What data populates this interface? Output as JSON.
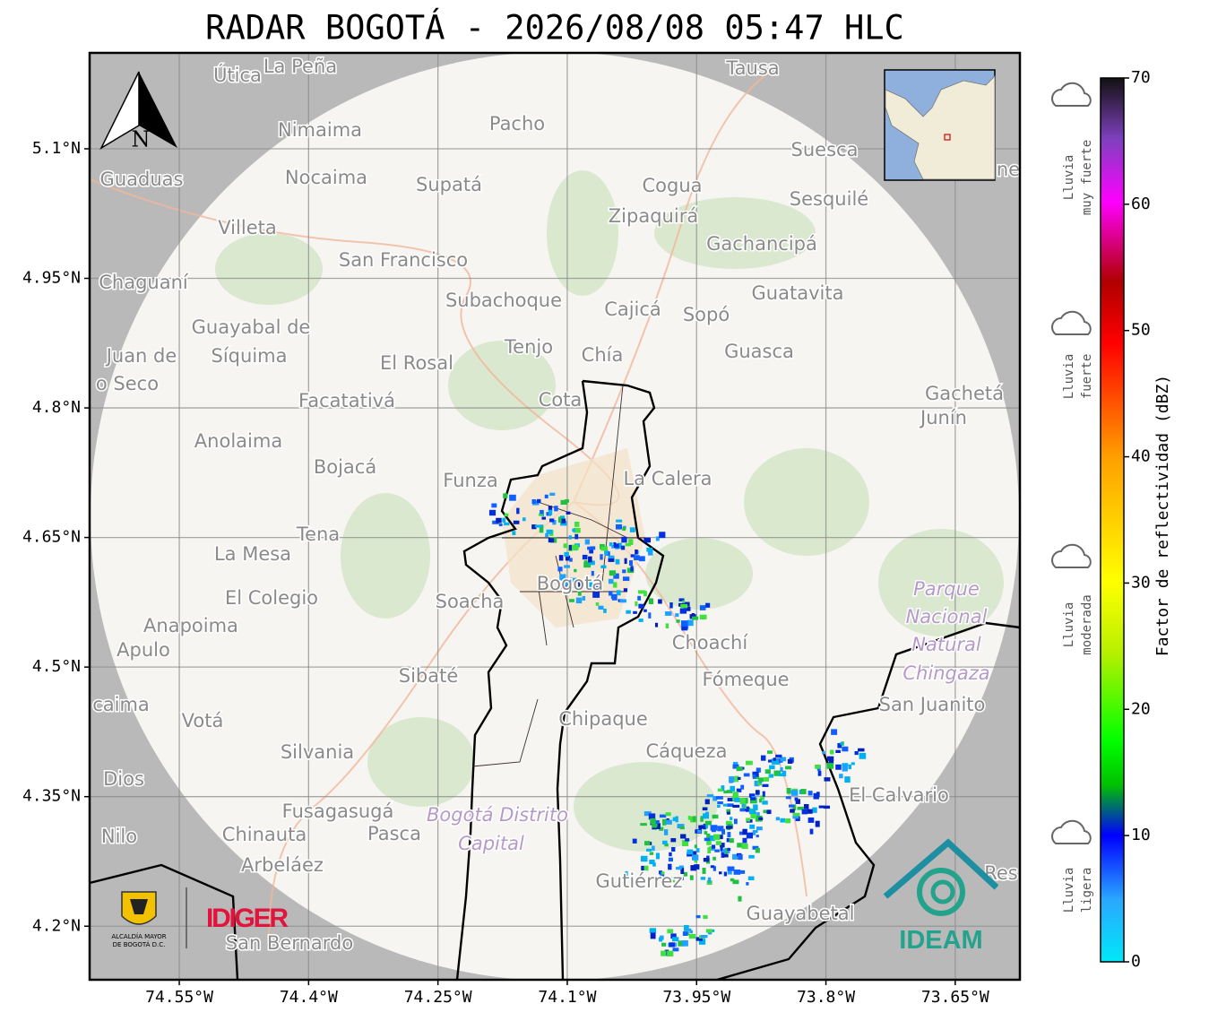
{
  "title": "RADAR BOGOTÁ - 2026/08/08 05:47 HLC",
  "map": {
    "xlim": [
      -74.654,
      -73.575
    ],
    "ylim": [
      4.138,
      5.211
    ],
    "xticks": [
      {
        "value": -74.55,
        "label": "74.55°W"
      },
      {
        "value": -74.4,
        "label": "74.4°W"
      },
      {
        "value": -74.25,
        "label": "74.25°W"
      },
      {
        "value": -74.1,
        "label": "74.1°W"
      },
      {
        "value": -73.95,
        "label": "73.95°W"
      },
      {
        "value": -73.8,
        "label": "73.8°W"
      },
      {
        "value": -73.65,
        "label": "73.65°W"
      }
    ],
    "yticks": [
      {
        "value": 5.1,
        "label": "5.1°N"
      },
      {
        "value": 4.95,
        "label": "4.95°N"
      },
      {
        "value": 4.8,
        "label": "4.8°N"
      },
      {
        "value": 4.65,
        "label": "4.65°N"
      },
      {
        "value": 4.5,
        "label": "4.5°N"
      },
      {
        "value": 4.35,
        "label": "4.35°N"
      },
      {
        "value": 4.2,
        "label": "4.2°N"
      }
    ],
    "grid": true,
    "north": "N",
    "places": [
      "Útica",
      "La Peña",
      "Tausa",
      "Pacho",
      "Nimaima",
      "Suesca",
      "Guaduas",
      "Nocaima",
      "Supatá",
      "Cogua",
      "Sesquilé",
      "Villeta",
      "Zipaquirá",
      "Gachancipá",
      "San Francisco",
      "Chaguaní",
      "Guatavita",
      "Subachoque",
      "Cajicá",
      "Sopó",
      "Guayabal de",
      "Tenjo",
      "Chía",
      "Guasca",
      "Juan de",
      "Síquima",
      "El Rosal",
      "o Seco",
      "Cota",
      "Gachetá",
      "Junín",
      "Facatativá",
      "Anolaima",
      "Bojacá",
      "Funza",
      "La Calera",
      "Tena",
      "La Mesa",
      "El Colegio",
      "Soacha",
      "Bogotá",
      "Anapoima",
      "Apulo",
      "Choachí",
      "Sibaté",
      "Fómeque",
      "caima",
      "Votá",
      "Chipaque",
      "San Juanito",
      "Silvania",
      "Cáqueza",
      "Dios",
      "El Calvario",
      "Fusagasugá",
      "Nilo",
      "Chinauta",
      "Pasca",
      "Arbeláez",
      "Gutiérrez",
      "Guayabetal",
      "San Bernardo",
      "Res",
      "ne"
    ],
    "parks": [
      "Parque",
      "Nacional",
      "Natural",
      "Chingaza",
      "Bogotá Distrito",
      "Capital"
    ]
  },
  "logos": {
    "left_line1": "ALCALDÍA MAYOR",
    "left_line2": "DE BOGOTÁ D.C.",
    "middle": "IDIGER",
    "right": "IDEAM"
  },
  "colorbar": {
    "label": "Factor de reflectividad (dBZ)",
    "lim": [
      0,
      70
    ],
    "ticks": [
      0,
      10,
      20,
      30,
      40,
      50,
      60,
      70
    ]
  },
  "rain_levels": [
    [
      "Lluvia",
      "muy fuerte"
    ],
    [
      "Lluvia",
      "fuerte"
    ],
    [
      "Lluvia",
      "moderada"
    ],
    [
      "Lluvia",
      "ligera"
    ]
  ]
}
